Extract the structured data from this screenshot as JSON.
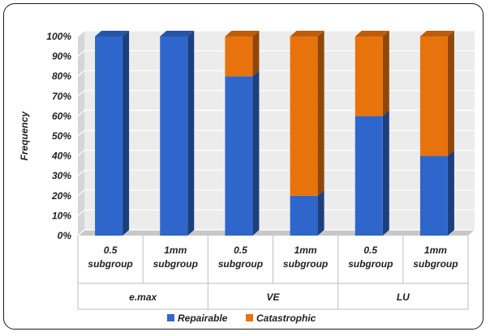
{
  "chart_data": {
    "type": "bar",
    "stacked": true,
    "three_d": true,
    "ylabel": "Frequency",
    "ylim": [
      0,
      100
    ],
    "y_ticks": [
      "0%",
      "10%",
      "20%",
      "30%",
      "40%",
      "50%",
      "60%",
      "70%",
      "80%",
      "90%",
      "100%"
    ],
    "categories": [
      [
        "0.5",
        "subgroup"
      ],
      [
        "1mm",
        "subgroup"
      ],
      [
        "0.5",
        "subgroup"
      ],
      [
        "1mm",
        "subgroup"
      ],
      [
        "0.5",
        "subgroup"
      ],
      [
        "1mm",
        "subgroup"
      ]
    ],
    "groups": [
      {
        "name": "e.max",
        "span": 2
      },
      {
        "name": "VE",
        "span": 2
      },
      {
        "name": "LU",
        "span": 2
      }
    ],
    "series": [
      {
        "name": "Repairable",
        "color": "#2e66cc",
        "values": [
          100,
          100,
          80,
          20,
          60,
          40
        ]
      },
      {
        "name": "Catastrophic",
        "color": "#e8720c",
        "values": [
          0,
          0,
          20,
          80,
          40,
          60
        ]
      }
    ],
    "grid": true,
    "legend_position": "bottom"
  }
}
